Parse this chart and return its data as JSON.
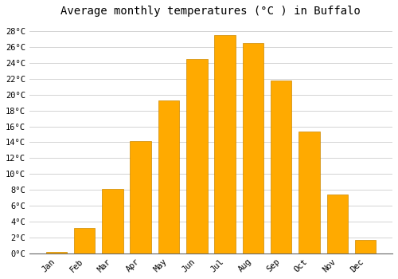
{
  "title": "Average monthly temperatures (°C ) in Buffalo",
  "months": [
    "Jan",
    "Feb",
    "Mar",
    "Apr",
    "May",
    "Jun",
    "Jul",
    "Aug",
    "Sep",
    "Oct",
    "Nov",
    "Dec"
  ],
  "values": [
    0.2,
    3.2,
    8.1,
    14.1,
    19.3,
    24.5,
    27.5,
    26.5,
    21.8,
    15.3,
    7.4,
    1.7
  ],
  "bar_color": "#FFAA00",
  "bar_edge_color": "#CC8800",
  "ylim": [
    0,
    29
  ],
  "yticks": [
    0,
    2,
    4,
    6,
    8,
    10,
    12,
    14,
    16,
    18,
    20,
    22,
    24,
    26,
    28
  ],
  "ytick_labels": [
    "0°C",
    "2°C",
    "4°C",
    "6°C",
    "8°C",
    "10°C",
    "12°C",
    "14°C",
    "16°C",
    "18°C",
    "20°C",
    "22°C",
    "24°C",
    "26°C",
    "28°C"
  ],
  "background_color": "#FFFFFF",
  "plot_bg_color": "#FFFFFF",
  "grid_color": "#CCCCCC",
  "title_fontsize": 10,
  "tick_fontsize": 7.5,
  "bar_width": 0.75
}
